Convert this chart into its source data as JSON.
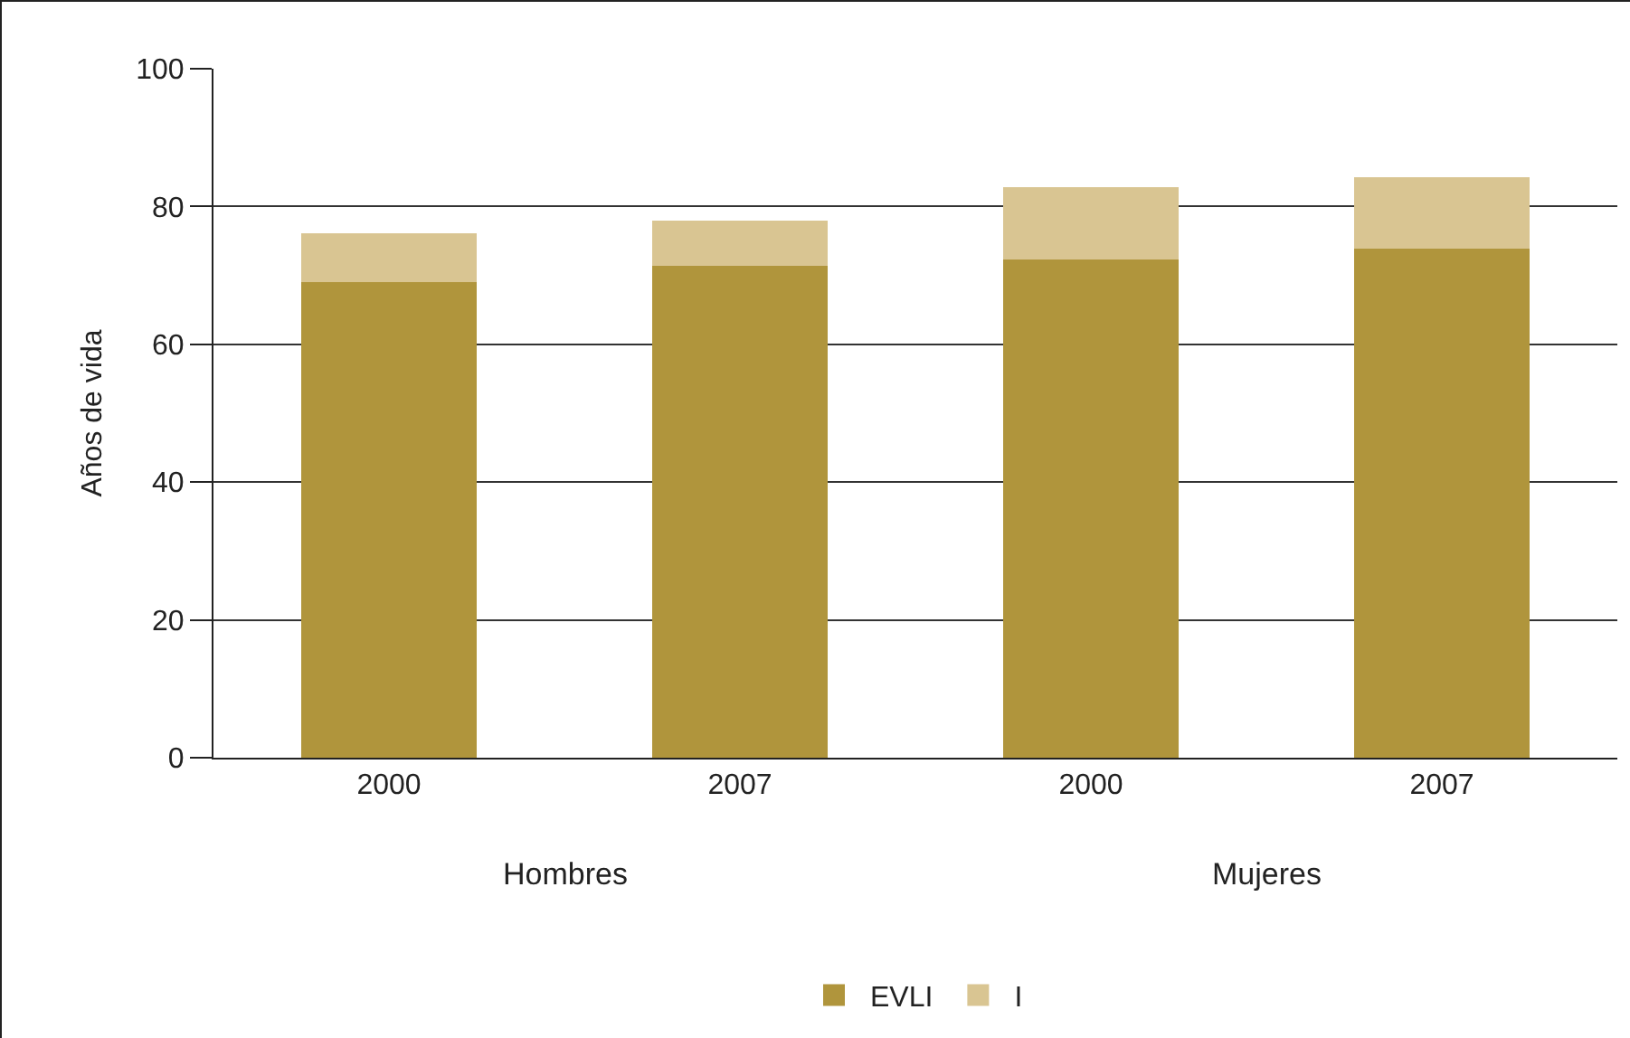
{
  "chart_data": {
    "type": "bar",
    "ylabel": "Años de vida",
    "categories": [
      "2000",
      "2007",
      "2000",
      "2007"
    ],
    "series": [
      {
        "name": "EVLI",
        "color": "#b0953c",
        "values": [
          69.0,
          71.4,
          72.3,
          73.9
        ]
      },
      {
        "name": "I",
        "color": "#d9c592",
        "values": [
          7.1,
          6.5,
          10.5,
          10.4
        ]
      }
    ],
    "stacked": true,
    "ylim": [
      0,
      100
    ],
    "yticks": [
      0,
      20,
      40,
      60,
      80,
      100
    ],
    "grid": "y",
    "legend": "bottom",
    "annotations": [
      "Hombres",
      "Mujeres"
    ]
  }
}
